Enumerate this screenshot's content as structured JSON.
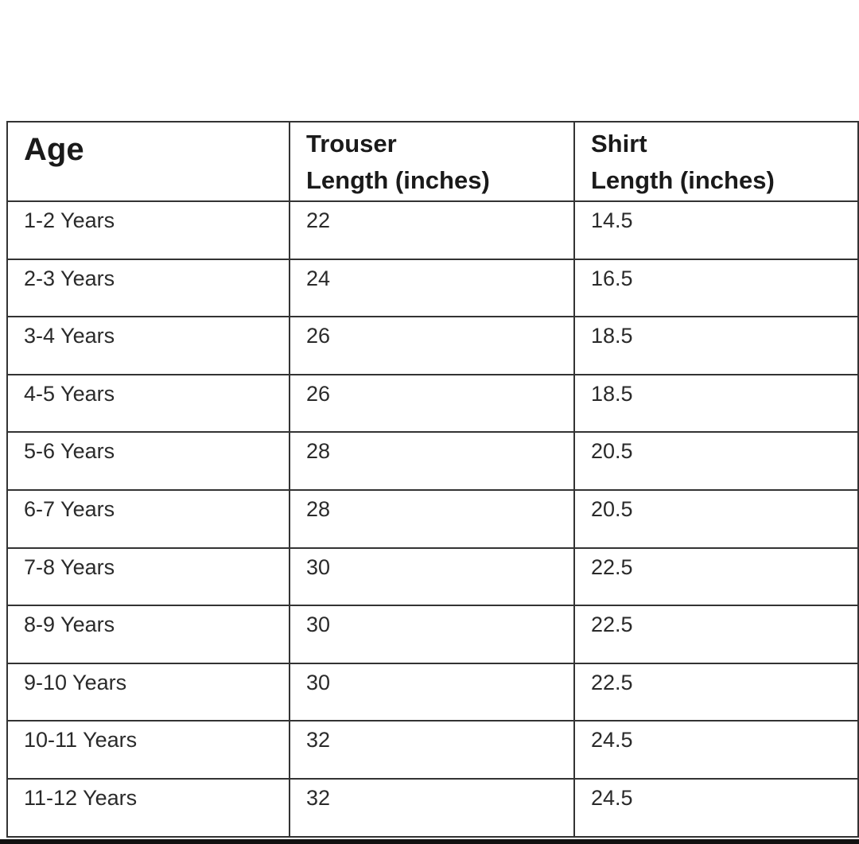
{
  "table": {
    "headers": {
      "age": "Age",
      "trouser_line1": "Trouser",
      "trouser_line2": "Length  (inches)",
      "shirt_line1": "Shirt",
      "shirt_line2": "Length  (inches)"
    },
    "rows": [
      {
        "age": "1-2 Years",
        "trouser": "22",
        "shirt": "14.5"
      },
      {
        "age": "2-3 Years",
        "trouser": "24",
        "shirt": "16.5"
      },
      {
        "age": "3-4 Years",
        "trouser": "26",
        "shirt": "18.5"
      },
      {
        "age": "4-5 Years",
        "trouser": "26",
        "shirt": "18.5"
      },
      {
        "age": "5-6 Years",
        "trouser": "28",
        "shirt": "20.5"
      },
      {
        "age": "6-7 Years",
        "trouser": "28",
        "shirt": "20.5"
      },
      {
        "age": "7-8 Years",
        "trouser": "30",
        "shirt": "22.5"
      },
      {
        "age": "8-9 Years",
        "trouser": "30",
        "shirt": "22.5"
      },
      {
        "age": "9-10 Years",
        "trouser": "30",
        "shirt": "22.5"
      },
      {
        "age": "10-11 Years",
        "trouser": "32",
        "shirt": "24.5"
      },
      {
        "age": "11-12 Years",
        "trouser": "32",
        "shirt": "24.5"
      }
    ]
  }
}
